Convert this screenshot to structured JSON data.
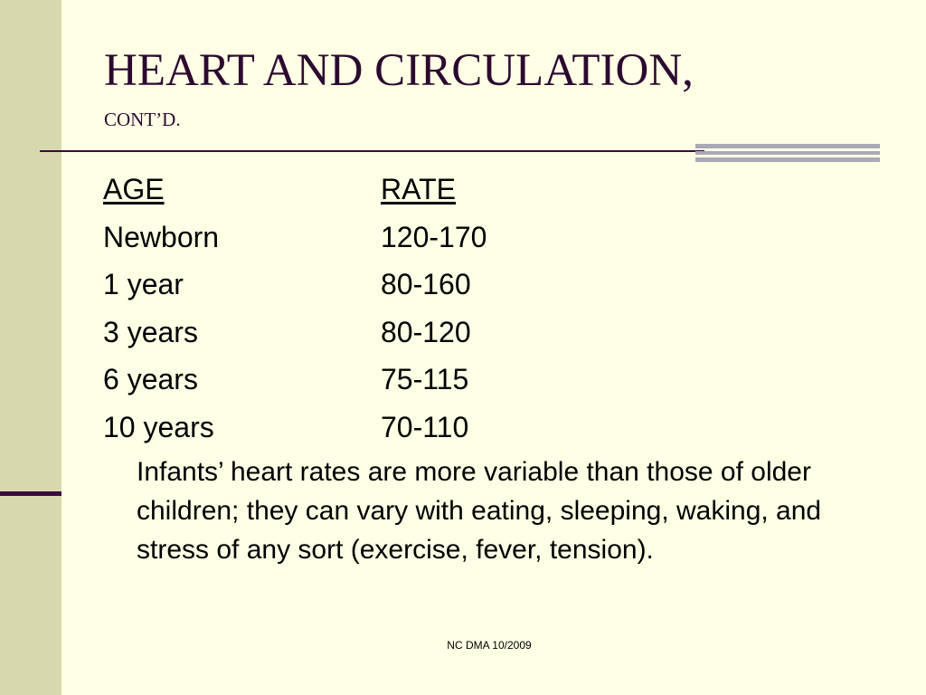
{
  "slide": {
    "title": "HEART AND CIRCULATION,",
    "subtitle": "CONT’D.",
    "table": {
      "header": {
        "age": "AGE",
        "rate": "RATE"
      },
      "rows": [
        {
          "age": "Newborn",
          "rate": "120-170"
        },
        {
          "age": "1 year",
          "rate": "80-160"
        },
        {
          "age": "3 years",
          "rate": "80-120"
        },
        {
          "age": "6 years",
          "rate": "75-115"
        },
        {
          "age": "10 years",
          "rate": "70-110"
        }
      ]
    },
    "note": "Infants’ heart rates are more variable than those of older children; they can vary with eating, sleeping, waking, and stress of any sort (exercise, fever, tension).",
    "footer": "NC DMA 10/2009"
  },
  "colors": {
    "background": "#FFFFE5",
    "left_band": "#D8D8AE",
    "accent": "#3A0A3C",
    "gray_bars": "#A9A9B7",
    "title_text": "#2C0A30"
  }
}
